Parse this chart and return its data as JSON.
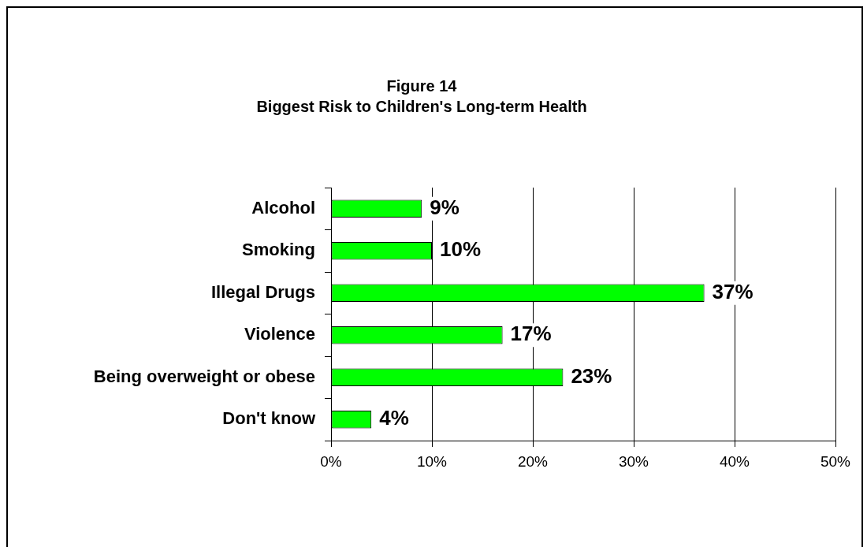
{
  "chart_data": {
    "type": "bar",
    "orientation": "horizontal",
    "title": "Figure 14",
    "subtitle": "Biggest Risk to Children's Long-term Health",
    "categories": [
      "Alcohol",
      "Smoking",
      "Illegal Drugs",
      "Violence",
      "Being overweight or obese",
      "Don't know"
    ],
    "values": [
      9,
      10,
      37,
      17,
      23,
      4
    ],
    "value_labels": [
      "9%",
      "10%",
      "37%",
      "17%",
      "23%",
      "4%"
    ],
    "color": "#00ff00",
    "xlim": [
      0,
      50
    ],
    "xticks": [
      {
        "value": 0,
        "label": "0%"
      },
      {
        "value": 10,
        "label": "10%"
      },
      {
        "value": 20,
        "label": "20%"
      },
      {
        "value": 30,
        "label": "30%"
      },
      {
        "value": 40,
        "label": "40%"
      },
      {
        "value": 50,
        "label": "50%"
      }
    ],
    "grid": "x"
  }
}
